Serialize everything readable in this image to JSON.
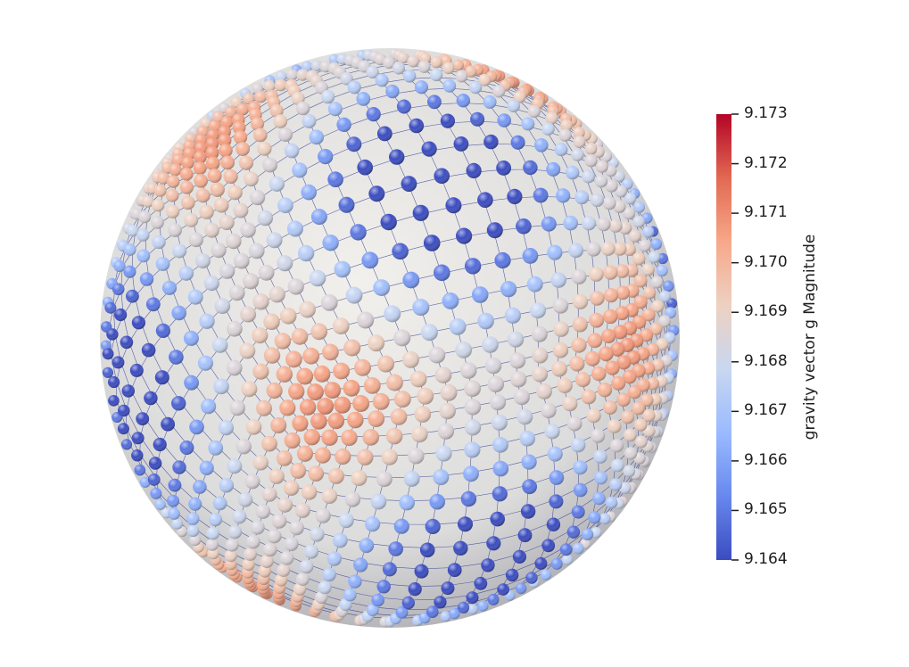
{
  "legend": {
    "title": "gravity vector g Magnitude",
    "range": [
      9.164,
      9.173
    ],
    "ticks": [
      "9.173",
      "9.172",
      "9.171",
      "9.170",
      "9.169",
      "9.168",
      "9.167",
      "9.166",
      "9.165",
      "9.164"
    ],
    "colormap": [
      "#3b4cc0",
      "#6788ee",
      "#9abbff",
      "#c9d7f0",
      "#edd1c2",
      "#f7a889",
      "#e26952",
      "#b40426"
    ]
  },
  "scene": {
    "background": "#ffffff",
    "sphere_color": "#dcdcdc",
    "mesh_color": "#1f2a8a"
  }
}
